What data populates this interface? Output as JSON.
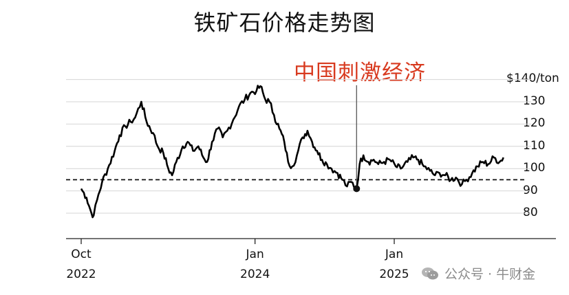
{
  "chart_data": {
    "type": "line",
    "title": "铁矿石价格走势图",
    "unit_label": "$140/ton",
    "annotation": {
      "text": "中国刺激经济",
      "color": "#d83a1f",
      "date": "2024-09-24",
      "marker_value": 91
    },
    "reference_line": {
      "value": 95,
      "style": "dashed"
    },
    "ylim": [
      75,
      140
    ],
    "y_ticks": [
      80,
      90,
      100,
      110,
      120,
      130
    ],
    "x_ticks": [
      {
        "label": "Oct",
        "sublabel": "2022",
        "date": "2022-10-01"
      },
      {
        "label": "Jan",
        "sublabel": "2024",
        "date": "2024-01-01"
      },
      {
        "label": "Jan",
        "sublabel": "2025",
        "date": "2025-01-01"
      }
    ],
    "grid": true,
    "series": [
      {
        "color": "#000000",
        "points": [
          [
            "2022-10-01",
            91
          ],
          [
            "2022-10-15",
            87
          ],
          [
            "2022-10-28",
            80
          ],
          [
            "2022-11-03",
            79
          ],
          [
            "2022-11-12",
            86
          ],
          [
            "2022-11-25",
            94
          ],
          [
            "2022-12-10",
            100
          ],
          [
            "2022-12-28",
            108
          ],
          [
            "2023-01-10",
            115
          ],
          [
            "2023-01-25",
            119
          ],
          [
            "2023-02-08",
            121
          ],
          [
            "2023-02-20",
            123
          ],
          [
            "2023-03-08",
            130
          ],
          [
            "2023-03-22",
            121
          ],
          [
            "2023-04-08",
            116
          ],
          [
            "2023-04-20",
            110
          ],
          [
            "2023-05-05",
            107
          ],
          [
            "2023-05-18",
            100
          ],
          [
            "2023-05-28",
            97
          ],
          [
            "2023-06-08",
            103
          ],
          [
            "2023-06-25",
            110
          ],
          [
            "2023-07-08",
            112
          ],
          [
            "2023-07-22",
            108
          ],
          [
            "2023-08-05",
            110
          ],
          [
            "2023-08-18",
            105
          ],
          [
            "2023-08-28",
            103
          ],
          [
            "2023-09-10",
            112
          ],
          [
            "2023-09-25",
            118
          ],
          [
            "2023-10-08",
            114
          ],
          [
            "2023-10-20",
            117
          ],
          [
            "2023-11-05",
            122
          ],
          [
            "2023-11-20",
            128
          ],
          [
            "2023-12-05",
            131
          ],
          [
            "2023-12-20",
            134
          ],
          [
            "2024-01-05",
            135
          ],
          [
            "2024-01-15",
            137
          ],
          [
            "2024-01-28",
            131
          ],
          [
            "2024-02-08",
            130
          ],
          [
            "2024-02-20",
            124
          ],
          [
            "2024-03-05",
            118
          ],
          [
            "2024-03-18",
            112
          ],
          [
            "2024-03-28",
            103
          ],
          [
            "2024-04-08",
            101
          ],
          [
            "2024-04-20",
            106
          ],
          [
            "2024-05-05",
            114
          ],
          [
            "2024-05-18",
            117
          ],
          [
            "2024-05-30",
            112
          ],
          [
            "2024-06-12",
            108
          ],
          [
            "2024-06-25",
            104
          ],
          [
            "2024-07-08",
            102
          ],
          [
            "2024-07-20",
            100
          ],
          [
            "2024-08-05",
            98
          ],
          [
            "2024-08-18",
            95
          ],
          [
            "2024-08-30",
            92
          ],
          [
            "2024-09-10",
            94
          ],
          [
            "2024-09-24",
            91
          ],
          [
            "2024-10-02",
            102
          ],
          [
            "2024-10-12",
            106
          ],
          [
            "2024-10-25",
            103
          ],
          [
            "2024-11-08",
            104
          ],
          [
            "2024-11-20",
            102
          ],
          [
            "2024-12-05",
            103
          ],
          [
            "2024-12-20",
            104
          ],
          [
            "2025-01-05",
            101
          ],
          [
            "2025-01-18",
            100
          ],
          [
            "2025-02-05",
            103
          ],
          [
            "2025-02-20",
            105
          ],
          [
            "2025-03-05",
            104
          ],
          [
            "2025-03-20",
            101
          ],
          [
            "2025-04-05",
            99
          ],
          [
            "2025-04-18",
            97
          ],
          [
            "2025-04-30",
            98
          ],
          [
            "2025-05-15",
            97
          ],
          [
            "2025-05-30",
            95
          ],
          [
            "2025-06-12",
            96
          ],
          [
            "2025-06-28",
            93
          ],
          [
            "2025-07-10",
            95
          ],
          [
            "2025-07-25",
            98
          ],
          [
            "2025-08-08",
            101
          ],
          [
            "2025-08-22",
            103
          ],
          [
            "2025-09-05",
            102
          ],
          [
            "2025-09-20",
            105
          ],
          [
            "2025-10-05",
            103
          ],
          [
            "2025-10-15",
            105
          ]
        ]
      }
    ]
  },
  "watermark": {
    "text": "公众号 · 牛财金",
    "icon": "wechat-icon"
  }
}
